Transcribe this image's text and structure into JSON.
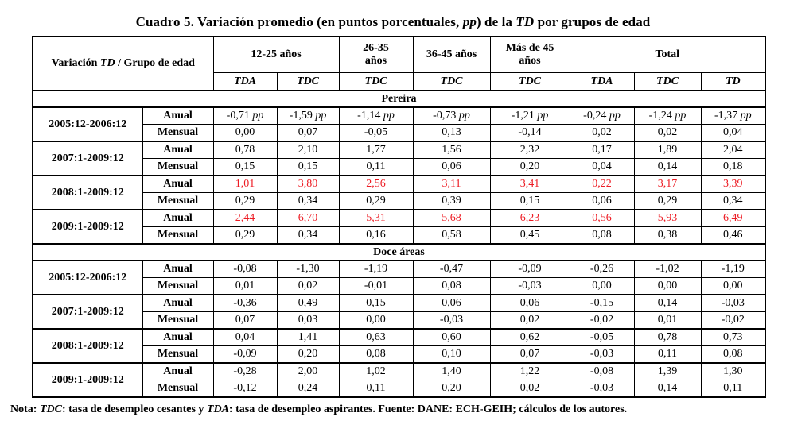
{
  "colors": {
    "red_highlight": "#ED1C24",
    "text": "#000000",
    "border": "#000000",
    "background": "#ffffff"
  },
  "title": {
    "segments": [
      {
        "text": "Cuadro 5. Variación promedio (en puntos porcentuales, "
      },
      {
        "text": "pp",
        "italic": true
      },
      {
        "text": ") de la "
      },
      {
        "text": "TD",
        "italic": true
      },
      {
        "text": " por grupos de edad"
      }
    ]
  },
  "table": {
    "corner": {
      "segments": [
        {
          "text": "Variación "
        },
        {
          "text": "TD",
          "italic": true
        },
        {
          "text": " / Grupo de edad"
        }
      ]
    },
    "column_groups": [
      {
        "label": "12-25 años",
        "span": 2
      },
      {
        "label": "26-35\naños",
        "span": 1
      },
      {
        "label": "36-45 años",
        "span": 1
      },
      {
        "label": "Más de 45\naños",
        "span": 1
      },
      {
        "label": "Total",
        "span": 3
      }
    ],
    "subheaders": [
      "TDA",
      "TDC",
      "TDC",
      "TDC",
      "TDC",
      "TDA",
      "TDC",
      "TD"
    ],
    "pp_label": "pp",
    "sections": [
      {
        "label": "Pereira",
        "groups": [
          {
            "period": "2005:12-2006:12",
            "rows": [
              {
                "label": "Anual",
                "pp": true,
                "red": false,
                "values": [
                  "-0,71",
                  "-1,59",
                  "-1,14",
                  "-0,73",
                  "-1,21",
                  "-0,24",
                  "-1,24",
                  "-1,37"
                ]
              },
              {
                "label": "Mensual",
                "pp": false,
                "red": false,
                "values": [
                  "0,00",
                  "0,07",
                  "-0,05",
                  "0,13",
                  "-0,14",
                  "0,02",
                  "0,02",
                  "0,04"
                ]
              }
            ]
          },
          {
            "period": "2007:1-2009:12",
            "rows": [
              {
                "label": "Anual",
                "pp": false,
                "red": false,
                "values": [
                  "0,78",
                  "2,10",
                  "1,77",
                  "1,56",
                  "2,32",
                  "0,17",
                  "1,89",
                  "2,04"
                ]
              },
              {
                "label": "Mensual",
                "pp": false,
                "red": false,
                "values": [
                  "0,15",
                  "0,15",
                  "0,11",
                  "0,06",
                  "0,20",
                  "0,04",
                  "0,14",
                  "0,18"
                ]
              }
            ]
          },
          {
            "period": "2008:1-2009:12",
            "rows": [
              {
                "label": "Anual",
                "pp": false,
                "red": true,
                "values": [
                  "1,01",
                  "3,80",
                  "2,56",
                  "3,11",
                  "3,41",
                  "0,22",
                  "3,17",
                  "3,39"
                ]
              },
              {
                "label": "Mensual",
                "pp": false,
                "red": false,
                "values": [
                  "0,29",
                  "0,34",
                  "0,29",
                  "0,39",
                  "0,15",
                  "0,06",
                  "0,29",
                  "0,34"
                ]
              }
            ]
          },
          {
            "period": "2009:1-2009:12",
            "rows": [
              {
                "label": "Anual",
                "pp": false,
                "red": true,
                "values": [
                  "2,44",
                  "6,70",
                  "5,31",
                  "5,68",
                  "6,23",
                  "0,56",
                  "5,93",
                  "6,49"
                ]
              },
              {
                "label": "Mensual",
                "pp": false,
                "red": false,
                "values": [
                  "0,29",
                  "0,34",
                  "0,16",
                  "0,58",
                  "0,45",
                  "0,08",
                  "0,38",
                  "0,46"
                ]
              }
            ]
          }
        ]
      },
      {
        "label": "Doce áreas",
        "groups": [
          {
            "period": "2005:12-2006:12",
            "rows": [
              {
                "label": "Anual",
                "pp": false,
                "red": false,
                "values": [
                  "-0,08",
                  "-1,30",
                  "-1,19",
                  "-0,47",
                  "-0,09",
                  "-0,26",
                  "-1,02",
                  "-1,19"
                ]
              },
              {
                "label": "Mensual",
                "pp": false,
                "red": false,
                "values": [
                  "0,01",
                  "0,02",
                  "-0,01",
                  "0,08",
                  "-0,03",
                  "0,00",
                  "0,00",
                  "0,00"
                ]
              }
            ]
          },
          {
            "period": "2007:1-2009:12",
            "rows": [
              {
                "label": "Anual",
                "pp": false,
                "red": false,
                "values": [
                  "-0,36",
                  "0,49",
                  "0,15",
                  "0,06",
                  "0,06",
                  "-0,15",
                  "0,14",
                  "-0,03"
                ]
              },
              {
                "label": "Mensual",
                "pp": false,
                "red": false,
                "values": [
                  "0,07",
                  "0,03",
                  "0,00",
                  "-0,03",
                  "0,02",
                  "-0,02",
                  "0,01",
                  "-0,02"
                ]
              }
            ]
          },
          {
            "period": "2008:1-2009:12",
            "rows": [
              {
                "label": "Anual",
                "pp": false,
                "red": false,
                "values": [
                  "0,04",
                  "1,41",
                  "0,63",
                  "0,60",
                  "0,62",
                  "-0,05",
                  "0,78",
                  "0,73"
                ]
              },
              {
                "label": "Mensual",
                "pp": false,
                "red": false,
                "values": [
                  "-0,09",
                  "0,20",
                  "0,08",
                  "0,10",
                  "0,07",
                  "-0,03",
                  "0,11",
                  "0,08"
                ]
              }
            ]
          },
          {
            "period": "2009:1-2009:12",
            "rows": [
              {
                "label": "Anual",
                "pp": false,
                "red": false,
                "values": [
                  "-0,28",
                  "2,00",
                  "1,02",
                  "1,40",
                  "1,22",
                  "-0,08",
                  "1,39",
                  "1,30"
                ]
              },
              {
                "label": "Mensual",
                "pp": false,
                "red": false,
                "values": [
                  "-0,12",
                  "0,24",
                  "0,11",
                  "0,20",
                  "0,02",
                  "-0,03",
                  "0,14",
                  "0,11"
                ]
              }
            ]
          }
        ]
      }
    ]
  },
  "note": {
    "segments": [
      {
        "text": "Nota: "
      },
      {
        "text": "TDC",
        "italic": true
      },
      {
        "text": ": tasa de desempleo cesantes y "
      },
      {
        "text": "TDA",
        "italic": true
      },
      {
        "text": ": tasa de desempleo aspirantes. Fuente: DANE: ECH-GEIH; cálculos de los autores."
      }
    ]
  }
}
